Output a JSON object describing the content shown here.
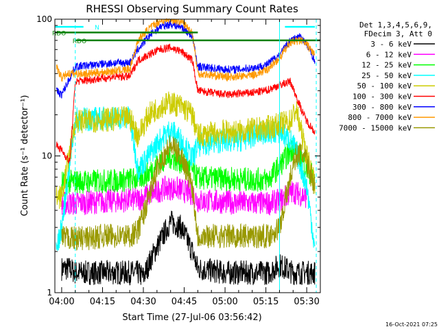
{
  "chart_data": {
    "type": "line",
    "title": "RHESSI Observing Summary Count Rates",
    "xlabel": "Start Time (27-Jul-06 03:56:42)",
    "ylabel": "Count Rate (s⁻¹ detector⁻¹)",
    "yscale": "log",
    "ylim": [
      1,
      100
    ],
    "xlim": [
      "03:57:30",
      "05:35:00"
    ],
    "x_ticks": [
      "04:00",
      "04:15",
      "04:30",
      "04:45",
      "05:00",
      "05:15",
      "05:30"
    ],
    "y_ticks": [
      "1",
      "10",
      "100"
    ],
    "legend_placement": "right",
    "legend_header": [
      "Det 1,3,4,5,6,9,",
      "FDecim 3, Att 0"
    ],
    "series": [
      {
        "name": "3 - 6 keV",
        "color": "#000000",
        "x": [
          "04:00",
          "04:03",
          "04:05",
          "04:12",
          "04:20",
          "04:28",
          "04:30",
          "04:33",
          "04:38",
          "04:40",
          "04:44",
          "04:48",
          "04:50",
          "05:00",
          "05:10",
          "05:16",
          "05:20",
          "05:25",
          "05:30",
          "05:33"
        ],
        "y": [
          1.5,
          1.5,
          1.4,
          1.4,
          1.4,
          1.4,
          1.3,
          1.8,
          2.8,
          3.3,
          3.0,
          2.0,
          1.5,
          1.4,
          1.4,
          1.4,
          1.6,
          1.4,
          1.4,
          1.4
        ]
      },
      {
        "name": "6 - 12 keV",
        "color": "#ff00ff",
        "x": [
          "04:00",
          "04:05",
          "04:12",
          "04:20",
          "04:28",
          "04:32",
          "04:38",
          "04:42",
          "04:48",
          "04:50",
          "05:00",
          "05:10",
          "05:16",
          "05:20",
          "05:25",
          "05:30"
        ],
        "y": [
          4.5,
          4.5,
          4.6,
          4.7,
          4.8,
          5.2,
          5.8,
          5.8,
          5.3,
          4.7,
          4.6,
          4.5,
          4.5,
          4.7,
          5.5,
          5.0
        ]
      },
      {
        "name": "12 - 25 keV",
        "color": "#00ff00",
        "x": [
          "04:00",
          "04:05",
          "04:12",
          "04:20",
          "04:28",
          "04:32",
          "04:36",
          "04:40",
          "04:44",
          "04:48",
          "04:50",
          "05:00",
          "05:10",
          "05:16",
          "05:22",
          "05:25",
          "05:28",
          "05:30",
          "05:33"
        ],
        "y": [
          6.4,
          6.5,
          6.5,
          6.6,
          6.8,
          7.5,
          9.0,
          9.8,
          9.0,
          7.8,
          6.9,
          6.8,
          6.7,
          6.7,
          9.5,
          11.5,
          9.5,
          8.0,
          7.0
        ]
      },
      {
        "name": "25 - 50 keV",
        "color": "#00ffff",
        "x": [
          "03:58",
          "04:00",
          "04:05",
          "04:10",
          "04:15",
          "04:20",
          "04:25",
          "04:28",
          "04:32",
          "04:36",
          "04:40",
          "04:44",
          "04:48",
          "04:50",
          "04:55",
          "05:00",
          "05:05",
          "05:10",
          "05:15",
          "05:20",
          "05:24",
          "05:26",
          "05:30",
          "05:32",
          "05:33"
        ],
        "y": [
          2.0,
          3.0,
          18.5,
          18.5,
          18.8,
          19.0,
          19.0,
          8.0,
          10.0,
          13.0,
          15.5,
          13.0,
          9.5,
          12.0,
          12.5,
          13.0,
          13.0,
          14.0,
          15.0,
          15.0,
          13.0,
          11.0,
          6.0,
          3.0,
          2.0
        ]
      },
      {
        "name": "50 - 100 keV",
        "color": "#cccc00",
        "x": [
          "03:58",
          "04:00",
          "04:05",
          "04:10",
          "04:15",
          "04:20",
          "04:25",
          "04:28",
          "04:32",
          "04:36",
          "04:40",
          "04:44",
          "04:48",
          "04:50",
          "04:55",
          "05:00",
          "05:05",
          "05:10",
          "05:15",
          "05:20",
          "05:24",
          "05:26",
          "05:28",
          "05:30",
          "05:33"
        ],
        "y": [
          5.0,
          5.0,
          18.0,
          18.0,
          18.5,
          18.5,
          19.0,
          14.0,
          20.0,
          23.0,
          24.5,
          23.0,
          20.0,
          14.0,
          14.5,
          15.0,
          15.0,
          15.5,
          16.0,
          17.0,
          18.0,
          22.0,
          15.0,
          10.0,
          6.5
        ]
      },
      {
        "name": "100 - 300 keV",
        "color": "#ff0000",
        "x": [
          "03:58",
          "04:00",
          "04:03",
          "04:05",
          "04:10",
          "04:15",
          "04:20",
          "04:25",
          "04:28",
          "04:32",
          "04:36",
          "04:40",
          "04:44",
          "04:48",
          "04:50",
          "04:55",
          "05:00",
          "05:05",
          "05:10",
          "05:15",
          "05:20",
          "05:24",
          "05:28",
          "05:30",
          "05:33"
        ],
        "y": [
          12.0,
          11.0,
          9.0,
          35.0,
          36.0,
          37.0,
          38.0,
          38.0,
          50.0,
          55.0,
          60.0,
          62.0,
          58.0,
          50.0,
          30.0,
          29.0,
          28.0,
          28.5,
          29.0,
          30.0,
          33.0,
          35.0,
          22.0,
          18.0,
          15.0
        ]
      },
      {
        "name": "300 - 800 keV",
        "color": "#0000ff",
        "x": [
          "03:58",
          "04:00",
          "04:05",
          "04:10",
          "04:15",
          "04:20",
          "04:25",
          "04:28",
          "04:32",
          "04:36",
          "04:40",
          "04:44",
          "04:48",
          "04:50",
          "04:55",
          "05:00",
          "05:05",
          "05:10",
          "05:15",
          "05:20",
          "05:24",
          "05:28",
          "05:30",
          "05:33"
        ],
        "y": [
          30.0,
          28.0,
          45.0,
          46.0,
          47.0,
          48.0,
          48.0,
          60.0,
          75.0,
          88.0,
          92.0,
          88.0,
          75.0,
          45.0,
          44.0,
          43.0,
          43.0,
          44.0,
          46.0,
          55.0,
          70.0,
          75.0,
          65.0,
          50.0
        ]
      },
      {
        "name": "800 - 7000 keV",
        "color": "#ff9900",
        "x": [
          "03:58",
          "04:00",
          "04:02",
          "04:05",
          "04:10",
          "04:15",
          "04:20",
          "04:25",
          "04:28",
          "04:32",
          "04:36",
          "04:40",
          "04:44",
          "04:48",
          "04:50",
          "04:55",
          "05:00",
          "05:05",
          "05:10",
          "05:15",
          "05:20",
          "05:24",
          "05:28",
          "05:30",
          "05:33"
        ],
        "y": [
          45.0,
          37.0,
          40.0,
          40.0,
          40.0,
          41.0,
          42.0,
          43.0,
          70.0,
          85.0,
          97.0,
          100.0,
          96.0,
          80.0,
          40.0,
          39.0,
          38.0,
          38.0,
          39.0,
          42.0,
          52.0,
          68.0,
          70.0,
          65.0,
          55.0
        ]
      },
      {
        "name": "7000 - 15000 keV",
        "color": "#999900",
        "x": [
          "04:00",
          "04:05",
          "04:10",
          "04:15",
          "04:20",
          "04:25",
          "04:28",
          "04:32",
          "04:36",
          "04:40",
          "04:44",
          "04:48",
          "04:50",
          "05:00",
          "05:10",
          "05:16",
          "05:20",
          "05:24",
          "05:26",
          "05:28",
          "05:30",
          "05:33"
        ],
        "y": [
          2.5,
          2.5,
          2.5,
          2.6,
          2.6,
          2.6,
          2.8,
          5.0,
          9.0,
          12.0,
          10.0,
          6.0,
          2.6,
          2.6,
          2.6,
          2.6,
          3.0,
          7.0,
          10.0,
          10.5,
          9.0,
          6.0
        ]
      }
    ],
    "flag_lines": [
      {
        "label": "RDO",
        "color": "#007f00",
        "x": [
          "03:57:30",
          "04:50:00"
        ],
        "y": 80
      },
      {
        "label": "RDO",
        "color": "#007f00",
        "x": [
          "04:05:00",
          "05:35:00"
        ],
        "y": 70
      },
      {
        "label": "N",
        "color": "#00ffff",
        "x": [
          "03:57:30",
          "04:08:00"
        ],
        "y": 88
      },
      {
        "label": "",
        "color": "#00ffff",
        "x": [
          "05:22:00",
          "05:33:00"
        ],
        "y": 88
      }
    ],
    "vertical_markers": [
      {
        "x": "04:05:00",
        "style": "dashed",
        "color": "#00ffff"
      },
      {
        "x": "05:20:00",
        "style": "solid",
        "color": "#00ffff"
      },
      {
        "x": "05:33:30",
        "style": "dashed",
        "color": "#00ffff"
      }
    ],
    "grid": false
  },
  "footer": {
    "timestamp": "16-Oct-2021 07:25"
  }
}
